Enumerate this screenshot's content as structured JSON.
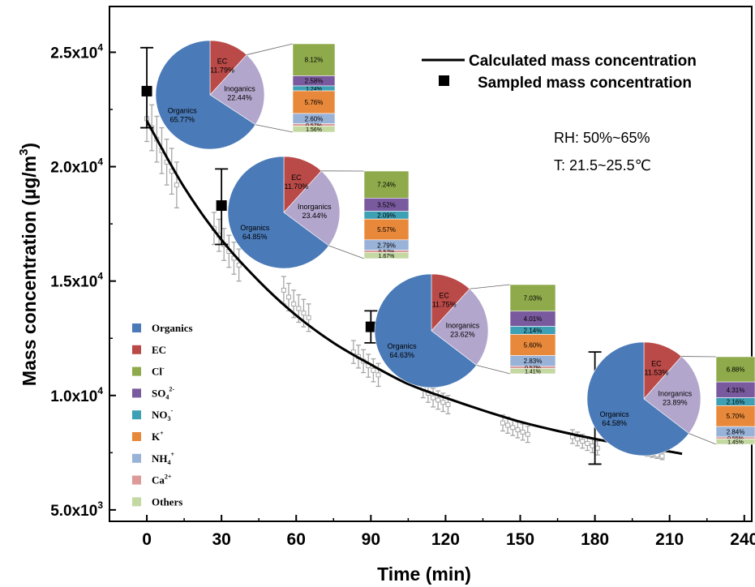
{
  "chart_data": {
    "type": "scatter",
    "xlabel": "Time (min)",
    "ylabel_main": "Mass concentration (µg/m",
    "ylabel_sup": "3",
    "ylabel_close": ")",
    "xlim": [
      -15,
      243
    ],
    "ylim": [
      4500,
      27000
    ],
    "x_ticks": [
      0,
      30,
      60,
      90,
      120,
      150,
      180,
      210,
      240
    ],
    "x_tick_labels": [
      "0",
      "30",
      "60",
      "90",
      "120",
      "150",
      "180",
      "210",
      "240"
    ],
    "y_ticks": [
      5000,
      10000,
      15000,
      20000,
      25000
    ],
    "y_tick_labels": [
      {
        "base": "5.0x10",
        "exp": "3"
      },
      {
        "base": "1.0x10",
        "exp": "4"
      },
      {
        "base": "1.5x10",
        "exp": "4"
      },
      {
        "base": "2.0x10",
        "exp": "4"
      },
      {
        "base": "2.5x10",
        "exp": "4"
      }
    ],
    "legend": {
      "calculated": "Calculated mass concentration",
      "sampled": "Sampled mass concentration"
    },
    "conditions": {
      "rh": "RH: 50%~65%",
      "t": "T:  21.5~25.5℃"
    },
    "calculated_curve": {
      "name": "Calculated mass concentration",
      "x": [
        0,
        15,
        30,
        45,
        60,
        75,
        90,
        105,
        120,
        135,
        150,
        165,
        180,
        195,
        210,
        215
      ],
      "y": [
        22000,
        19100,
        16800,
        15000,
        13500,
        12300,
        11350,
        10500,
        9900,
        9350,
        8850,
        8450,
        8100,
        7800,
        7550,
        7450
      ]
    },
    "sampled": {
      "name": "Sampled mass concentration",
      "x": [
        0,
        30,
        90,
        180
      ],
      "y": [
        23300,
        18300,
        13000,
        9500
      ],
      "err_low": [
        21700,
        16600,
        12300,
        7000
      ],
      "err_high": [
        25200,
        19900,
        13700,
        11900
      ]
    },
    "measured_x": [
      0,
      2,
      4,
      6,
      8,
      10,
      12,
      27,
      29,
      31,
      33,
      35,
      37,
      55,
      57,
      59,
      61,
      63,
      65,
      83,
      85,
      87,
      89,
      91,
      93,
      111,
      113,
      115,
      117,
      119,
      121,
      143,
      145,
      147,
      149,
      151,
      153,
      171,
      173,
      175,
      177,
      179,
      181,
      197,
      199,
      201,
      203,
      205,
      207
    ],
    "measured_y": [
      22100,
      21700,
      21200,
      20700,
      20200,
      19800,
      19200,
      17300,
      17000,
      16600,
      16300,
      16000,
      15700,
      14600,
      14300,
      14000,
      13800,
      13600,
      13400,
      11900,
      11700,
      11500,
      11300,
      11100,
      10900,
      10300,
      10100,
      9900,
      9800,
      9700,
      9600,
      8800,
      8700,
      8600,
      8500,
      8400,
      8300,
      8200,
      8100,
      8000,
      7900,
      7800,
      7700,
      7600,
      7550,
      7500,
      7450,
      7400,
      7350
    ],
    "measured_err": [
      1000,
      1000,
      1000,
      1000,
      1000,
      1000,
      1000,
      700,
      700,
      700,
      700,
      700,
      700,
      600,
      600,
      600,
      600,
      600,
      600,
      500,
      500,
      500,
      500,
      500,
      500,
      400,
      400,
      400,
      400,
      400,
      400,
      350,
      350,
      350,
      350,
      350,
      350,
      300,
      300,
      300,
      300,
      300,
      300,
      150,
      150,
      150,
      150,
      150,
      150
    ],
    "composition_legend": [
      {
        "label": "Organics",
        "color": "#4a7ab8"
      },
      {
        "label": "EC",
        "color": "#b94a48"
      },
      {
        "label": "Cl",
        "sup": "-",
        "color": "#8eaa4a"
      },
      {
        "label": "SO",
        "sub": "4",
        "sup": "2-",
        "color": "#7a5a9e"
      },
      {
        "label": "NO",
        "sub": "3",
        "sup": "-",
        "color": "#3ea0b4"
      },
      {
        "label": "K",
        "sup": "+",
        "color": "#e8883a"
      },
      {
        "label": "NH",
        "sub": "4",
        "sup": "+",
        "color": "#98b2d8"
      },
      {
        "label": "Ca",
        "sup": "2+",
        "color": "#dd9a98"
      },
      {
        "label": "Others",
        "color": "#c4d8a2"
      }
    ],
    "pies": [
      {
        "slices": [
          {
            "label": "Organics",
            "value": 65.77,
            "text": "65.77%",
            "color": "#4a7ab8"
          },
          {
            "label": "EC",
            "value": 11.79,
            "text": "11.79%",
            "color": "#b94a48"
          },
          {
            "label": "Inoganics",
            "value": 22.44,
            "text": "22.44%",
            "color": "#b3a6cc"
          }
        ],
        "bar": [
          {
            "label": "Cl-",
            "value": 8.12,
            "text": "8.12%",
            "color": "#8eaa4a"
          },
          {
            "label": "SO42-",
            "value": 2.58,
            "text": "2.58%",
            "color": "#7a5a9e"
          },
          {
            "label": "NO3-",
            "value": 1.24,
            "text": "1.24%",
            "color": "#3ea0b4"
          },
          {
            "label": "K+",
            "value": 5.76,
            "text": "5.76%",
            "color": "#e8883a"
          },
          {
            "label": "NH4+",
            "value": 2.6,
            "text": "2.60%",
            "color": "#98b2d8"
          },
          {
            "label": "Ca2+",
            "value": 0.57,
            "text": "0.57%",
            "color": "#dd9a98"
          },
          {
            "label": "Others",
            "value": 1.56,
            "text": "1.56%",
            "color": "#c4d8a2"
          }
        ]
      },
      {
        "slices": [
          {
            "label": "Organics",
            "value": 64.85,
            "text": "64.85%",
            "color": "#4a7ab8"
          },
          {
            "label": "EC",
            "value": 11.7,
            "text": "11.70%",
            "color": "#b94a48"
          },
          {
            "label": "Inorganics",
            "value": 23.44,
            "text": "23.44%",
            "color": "#b3a6cc"
          }
        ],
        "bar": [
          {
            "label": "Cl-",
            "value": 7.24,
            "text": "7.24%",
            "color": "#8eaa4a"
          },
          {
            "label": "SO42-",
            "value": 3.52,
            "text": "3.52%",
            "color": "#7a5a9e"
          },
          {
            "label": "NO3-",
            "value": 2.09,
            "text": "2.09%",
            "color": "#3ea0b4"
          },
          {
            "label": "K+",
            "value": 5.57,
            "text": "5.57%",
            "color": "#e8883a"
          },
          {
            "label": "NH4+",
            "value": 2.79,
            "text": "2.79%",
            "color": "#98b2d8"
          },
          {
            "label": "Ca2+",
            "value": 0.57,
            "text": "0.57%",
            "color": "#dd9a98"
          },
          {
            "label": "Others",
            "value": 1.67,
            "text": "1.67%",
            "color": "#c4d8a2"
          }
        ]
      },
      {
        "slices": [
          {
            "label": "Organics",
            "value": 64.63,
            "text": "64.63%",
            "color": "#4a7ab8"
          },
          {
            "label": "EC",
            "value": 11.75,
            "text": "11.75%",
            "color": "#b94a48"
          },
          {
            "label": "Inorganics",
            "value": 23.62,
            "text": "23.62%",
            "color": "#b3a6cc"
          }
        ],
        "bar": [
          {
            "label": "Cl-",
            "value": 7.03,
            "text": "7.03%",
            "color": "#8eaa4a"
          },
          {
            "label": "SO42-",
            "value": 4.01,
            "text": "4.01%",
            "color": "#7a5a9e"
          },
          {
            "label": "NO3-",
            "value": 2.14,
            "text": "2.14%",
            "color": "#3ea0b4"
          },
          {
            "label": "K+",
            "value": 5.6,
            "text": "5.60%",
            "color": "#e8883a"
          },
          {
            "label": "NH4+",
            "value": 2.83,
            "text": "2.83%",
            "color": "#98b2d8"
          },
          {
            "label": "Ca2+",
            "value": 0.57,
            "text": "0.57%",
            "color": "#dd9a98"
          },
          {
            "label": "Others",
            "value": 1.41,
            "text": "1.41%",
            "color": "#c4d8a2"
          }
        ]
      },
      {
        "slices": [
          {
            "label": "Organics",
            "value": 64.58,
            "text": "64.58%",
            "color": "#4a7ab8"
          },
          {
            "label": "EC",
            "value": 11.53,
            "text": "11.53%",
            "color": "#b94a48"
          },
          {
            "label": "Inorganics",
            "value": 23.89,
            "text": "23.89%",
            "color": "#b3a6cc"
          }
        ],
        "bar": [
          {
            "label": "Cl-",
            "value": 6.88,
            "text": "6.88%",
            "color": "#8eaa4a"
          },
          {
            "label": "SO42-",
            "value": 4.31,
            "text": "4.31%",
            "color": "#7a5a9e"
          },
          {
            "label": "NO3-",
            "value": 2.16,
            "text": "2.16%",
            "color": "#3ea0b4"
          },
          {
            "label": "K+",
            "value": 5.7,
            "text": "5.70%",
            "color": "#e8883a"
          },
          {
            "label": "NH4+",
            "value": 2.84,
            "text": "2.84%",
            "color": "#98b2d8"
          },
          {
            "label": "Ca2+",
            "value": 0.55,
            "text": "0.55%",
            "color": "#dd9a98"
          },
          {
            "label": "Others",
            "value": 1.45,
            "text": "1.45%",
            "color": "#c4d8a2"
          }
        ]
      }
    ]
  }
}
